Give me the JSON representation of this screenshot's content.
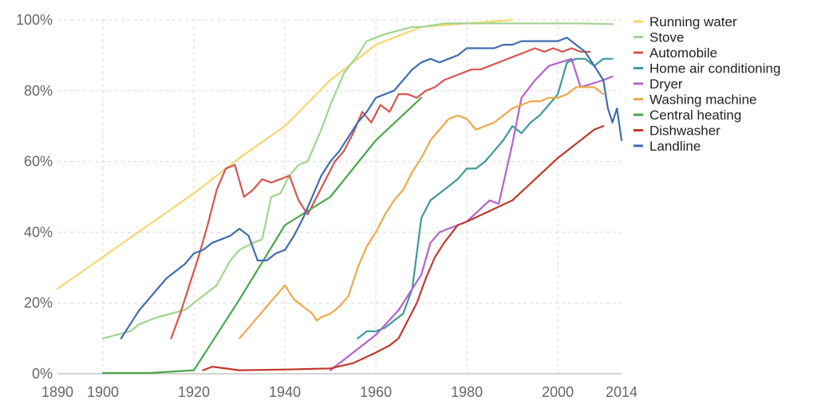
{
  "chart_data": {
    "type": "line",
    "title": "",
    "xlabel": "",
    "ylabel": "",
    "xlim": [
      1890,
      2014
    ],
    "ylim": [
      0,
      100
    ],
    "x_ticks": [
      1890,
      1900,
      1920,
      1940,
      1960,
      1980,
      2000,
      2014
    ],
    "x_tick_labels": [
      "1890",
      "1900",
      "1920",
      "1940",
      "1960",
      "1980",
      "2000",
      "2014"
    ],
    "y_ticks": [
      0,
      20,
      40,
      60,
      80,
      100
    ],
    "y_tick_labels": [
      "0%",
      "20%",
      "40%",
      "60%",
      "80%",
      "100%"
    ],
    "grid": true,
    "legend_position": "right",
    "series": [
      {
        "name": "Running water",
        "color": "#f5d76e",
        "points": [
          [
            1890,
            24
          ],
          [
            1900,
            33
          ],
          [
            1910,
            42
          ],
          [
            1920,
            51
          ],
          [
            1930,
            61
          ],
          [
            1940,
            70
          ],
          [
            1950,
            83
          ],
          [
            1960,
            93
          ],
          [
            1970,
            98
          ],
          [
            1980,
            99
          ],
          [
            1990,
            100
          ]
        ]
      },
      {
        "name": "Stove",
        "color": "#a1d490",
        "points": [
          [
            1900,
            10
          ],
          [
            1903,
            11
          ],
          [
            1906,
            12
          ],
          [
            1908,
            14
          ],
          [
            1910,
            15
          ],
          [
            1912,
            16
          ],
          [
            1915,
            17
          ],
          [
            1918,
            18
          ],
          [
            1920,
            20
          ],
          [
            1922,
            22
          ],
          [
            1925,
            25
          ],
          [
            1928,
            32
          ],
          [
            1930,
            35
          ],
          [
            1933,
            37
          ],
          [
            1935,
            38
          ],
          [
            1937,
            50
          ],
          [
            1939,
            51
          ],
          [
            1941,
            56
          ],
          [
            1943,
            59
          ],
          [
            1945,
            60
          ],
          [
            1948,
            69
          ],
          [
            1950,
            76
          ],
          [
            1953,
            85
          ],
          [
            1956,
            90
          ],
          [
            1958,
            94
          ],
          [
            1960,
            95
          ],
          [
            1962,
            96
          ],
          [
            1965,
            97
          ],
          [
            1968,
            98
          ],
          [
            1970,
            98
          ],
          [
            1975,
            99
          ],
          [
            1980,
            99
          ],
          [
            1990,
            99
          ],
          [
            2000,
            99
          ],
          [
            2005,
            99
          ],
          [
            2012,
            98.8
          ]
        ]
      },
      {
        "name": "Automobile",
        "color": "#d9534f",
        "points": [
          [
            1915,
            10
          ],
          [
            1917,
            17
          ],
          [
            1919,
            25
          ],
          [
            1921,
            33
          ],
          [
            1923,
            42
          ],
          [
            1925,
            52
          ],
          [
            1927,
            58
          ],
          [
            1929,
            59
          ],
          [
            1931,
            50
          ],
          [
            1933,
            52
          ],
          [
            1935,
            55
          ],
          [
            1937,
            54
          ],
          [
            1939,
            55
          ],
          [
            1941,
            56
          ],
          [
            1943,
            49
          ],
          [
            1945,
            45
          ],
          [
            1947,
            50
          ],
          [
            1949,
            55
          ],
          [
            1951,
            60
          ],
          [
            1953,
            63
          ],
          [
            1955,
            68
          ],
          [
            1957,
            74
          ],
          [
            1959,
            71
          ],
          [
            1961,
            76
          ],
          [
            1963,
            74
          ],
          [
            1965,
            79
          ],
          [
            1967,
            79
          ],
          [
            1969,
            78
          ],
          [
            1971,
            80
          ],
          [
            1973,
            81
          ],
          [
            1975,
            83
          ],
          [
            1977,
            84
          ],
          [
            1979,
            85
          ],
          [
            1981,
            86
          ],
          [
            1983,
            86
          ],
          [
            1985,
            87
          ],
          [
            1987,
            88
          ],
          [
            1989,
            89
          ],
          [
            1991,
            90
          ],
          [
            1993,
            91
          ],
          [
            1995,
            92
          ],
          [
            1997,
            91
          ],
          [
            1999,
            92
          ],
          [
            2001,
            91
          ],
          [
            2003,
            92
          ],
          [
            2005,
            91
          ],
          [
            2007,
            91
          ]
        ]
      },
      {
        "name": "Home air conditioning",
        "color": "#3d9a9a",
        "points": [
          [
            1956,
            10
          ],
          [
            1958,
            12
          ],
          [
            1960,
            12
          ],
          [
            1962,
            13
          ],
          [
            1964,
            15
          ],
          [
            1966,
            17
          ],
          [
            1968,
            24
          ],
          [
            1970,
            44
          ],
          [
            1972,
            49
          ],
          [
            1974,
            51
          ],
          [
            1976,
            53
          ],
          [
            1978,
            55
          ],
          [
            1980,
            58
          ],
          [
            1982,
            58
          ],
          [
            1984,
            60
          ],
          [
            1986,
            63
          ],
          [
            1988,
            66
          ],
          [
            1990,
            70
          ],
          [
            1992,
            68
          ],
          [
            1994,
            71
          ],
          [
            1996,
            73
          ],
          [
            1998,
            76
          ],
          [
            2000,
            79
          ],
          [
            2002,
            88
          ],
          [
            2004,
            89
          ],
          [
            2006,
            89
          ],
          [
            2008,
            87
          ],
          [
            2010,
            89
          ],
          [
            2012,
            89
          ]
        ]
      },
      {
        "name": "Dryer",
        "color": "#b660cd",
        "points": [
          [
            1950,
            1
          ],
          [
            1955,
            6
          ],
          [
            1960,
            11
          ],
          [
            1965,
            18
          ],
          [
            1970,
            28
          ],
          [
            1972,
            37
          ],
          [
            1974,
            40
          ],
          [
            1980,
            43
          ],
          [
            1985,
            49
          ],
          [
            1987,
            48
          ],
          [
            1990,
            65
          ],
          [
            1992,
            78
          ],
          [
            1995,
            83
          ],
          [
            1998,
            87
          ],
          [
            2003,
            89
          ],
          [
            2005,
            81
          ],
          [
            2010,
            83
          ],
          [
            2012,
            84
          ]
        ]
      },
      {
        "name": "Washing machine",
        "color": "#f0a84b",
        "points": [
          [
            1930,
            10
          ],
          [
            1932,
            13
          ],
          [
            1934,
            16
          ],
          [
            1936,
            19
          ],
          [
            1938,
            22
          ],
          [
            1940,
            25
          ],
          [
            1942,
            21
          ],
          [
            1944,
            19
          ],
          [
            1946,
            17
          ],
          [
            1947,
            15
          ],
          [
            1948,
            16
          ],
          [
            1950,
            17
          ],
          [
            1952,
            19
          ],
          [
            1954,
            22
          ],
          [
            1956,
            30
          ],
          [
            1958,
            36
          ],
          [
            1960,
            40
          ],
          [
            1962,
            45
          ],
          [
            1964,
            49
          ],
          [
            1966,
            52
          ],
          [
            1968,
            57
          ],
          [
            1970,
            61
          ],
          [
            1972,
            66
          ],
          [
            1974,
            69
          ],
          [
            1976,
            72
          ],
          [
            1978,
            73
          ],
          [
            1980,
            72
          ],
          [
            1982,
            69
          ],
          [
            1984,
            70
          ],
          [
            1986,
            71
          ],
          [
            1988,
            73
          ],
          [
            1990,
            75
          ],
          [
            1992,
            76
          ],
          [
            1994,
            77
          ],
          [
            1996,
            77
          ],
          [
            1998,
            78
          ],
          [
            2000,
            78
          ],
          [
            2002,
            79
          ],
          [
            2004,
            81
          ],
          [
            2006,
            81
          ],
          [
            2008,
            81
          ],
          [
            2010,
            79
          ]
        ]
      },
      {
        "name": "Central heating",
        "color": "#4ca64c",
        "points": [
          [
            1900,
            0.2
          ],
          [
            1910,
            0.2
          ],
          [
            1920,
            1
          ],
          [
            1930,
            21
          ],
          [
            1940,
            42
          ],
          [
            1950,
            50
          ],
          [
            1960,
            66
          ],
          [
            1970,
            78
          ]
        ]
      },
      {
        "name": "Dishwasher",
        "color": "#c0392b",
        "points": [
          [
            1922,
            1
          ],
          [
            1924,
            2
          ],
          [
            1930,
            1
          ],
          [
            1940,
            1.2
          ],
          [
            1950,
            1.5
          ],
          [
            1955,
            3
          ],
          [
            1960,
            6
          ],
          [
            1963,
            8
          ],
          [
            1965,
            10
          ],
          [
            1967,
            15
          ],
          [
            1969,
            20
          ],
          [
            1971,
            27
          ],
          [
            1973,
            33
          ],
          [
            1975,
            37
          ],
          [
            1978,
            42
          ],
          [
            1980,
            43
          ],
          [
            1985,
            46
          ],
          [
            1990,
            49
          ],
          [
            1995,
            55
          ],
          [
            2000,
            61
          ],
          [
            2005,
            66
          ],
          [
            2008,
            69
          ],
          [
            2010,
            70
          ]
        ]
      },
      {
        "name": "Landline",
        "color": "#3f6db2",
        "points": [
          [
            1904,
            10
          ],
          [
            1906,
            14
          ],
          [
            1908,
            18
          ],
          [
            1910,
            21
          ],
          [
            1912,
            24
          ],
          [
            1914,
            27
          ],
          [
            1916,
            29
          ],
          [
            1918,
            31
          ],
          [
            1920,
            34
          ],
          [
            1922,
            35
          ],
          [
            1924,
            37
          ],
          [
            1926,
            38
          ],
          [
            1928,
            39
          ],
          [
            1930,
            41
          ],
          [
            1932,
            39
          ],
          [
            1934,
            32
          ],
          [
            1936,
            32
          ],
          [
            1938,
            34
          ],
          [
            1940,
            35
          ],
          [
            1942,
            39
          ],
          [
            1944,
            44
          ],
          [
            1946,
            50
          ],
          [
            1948,
            56
          ],
          [
            1950,
            60
          ],
          [
            1952,
            63
          ],
          [
            1954,
            67
          ],
          [
            1956,
            71
          ],
          [
            1958,
            74
          ],
          [
            1960,
            78
          ],
          [
            1962,
            79
          ],
          [
            1964,
            80
          ],
          [
            1966,
            83
          ],
          [
            1968,
            86
          ],
          [
            1970,
            88
          ],
          [
            1972,
            89
          ],
          [
            1974,
            88
          ],
          [
            1976,
            89
          ],
          [
            1978,
            90
          ],
          [
            1980,
            92
          ],
          [
            1982,
            92
          ],
          [
            1984,
            92
          ],
          [
            1986,
            92
          ],
          [
            1988,
            93
          ],
          [
            1990,
            93
          ],
          [
            1992,
            94
          ],
          [
            1994,
            94
          ],
          [
            1996,
            94
          ],
          [
            1998,
            94
          ],
          [
            2000,
            94
          ],
          [
            2002,
            95
          ],
          [
            2004,
            93
          ],
          [
            2006,
            91
          ],
          [
            2008,
            87
          ],
          [
            2010,
            83
          ],
          [
            2011,
            75
          ],
          [
            2012,
            71
          ],
          [
            2013,
            75
          ],
          [
            2014,
            66
          ]
        ]
      }
    ]
  }
}
